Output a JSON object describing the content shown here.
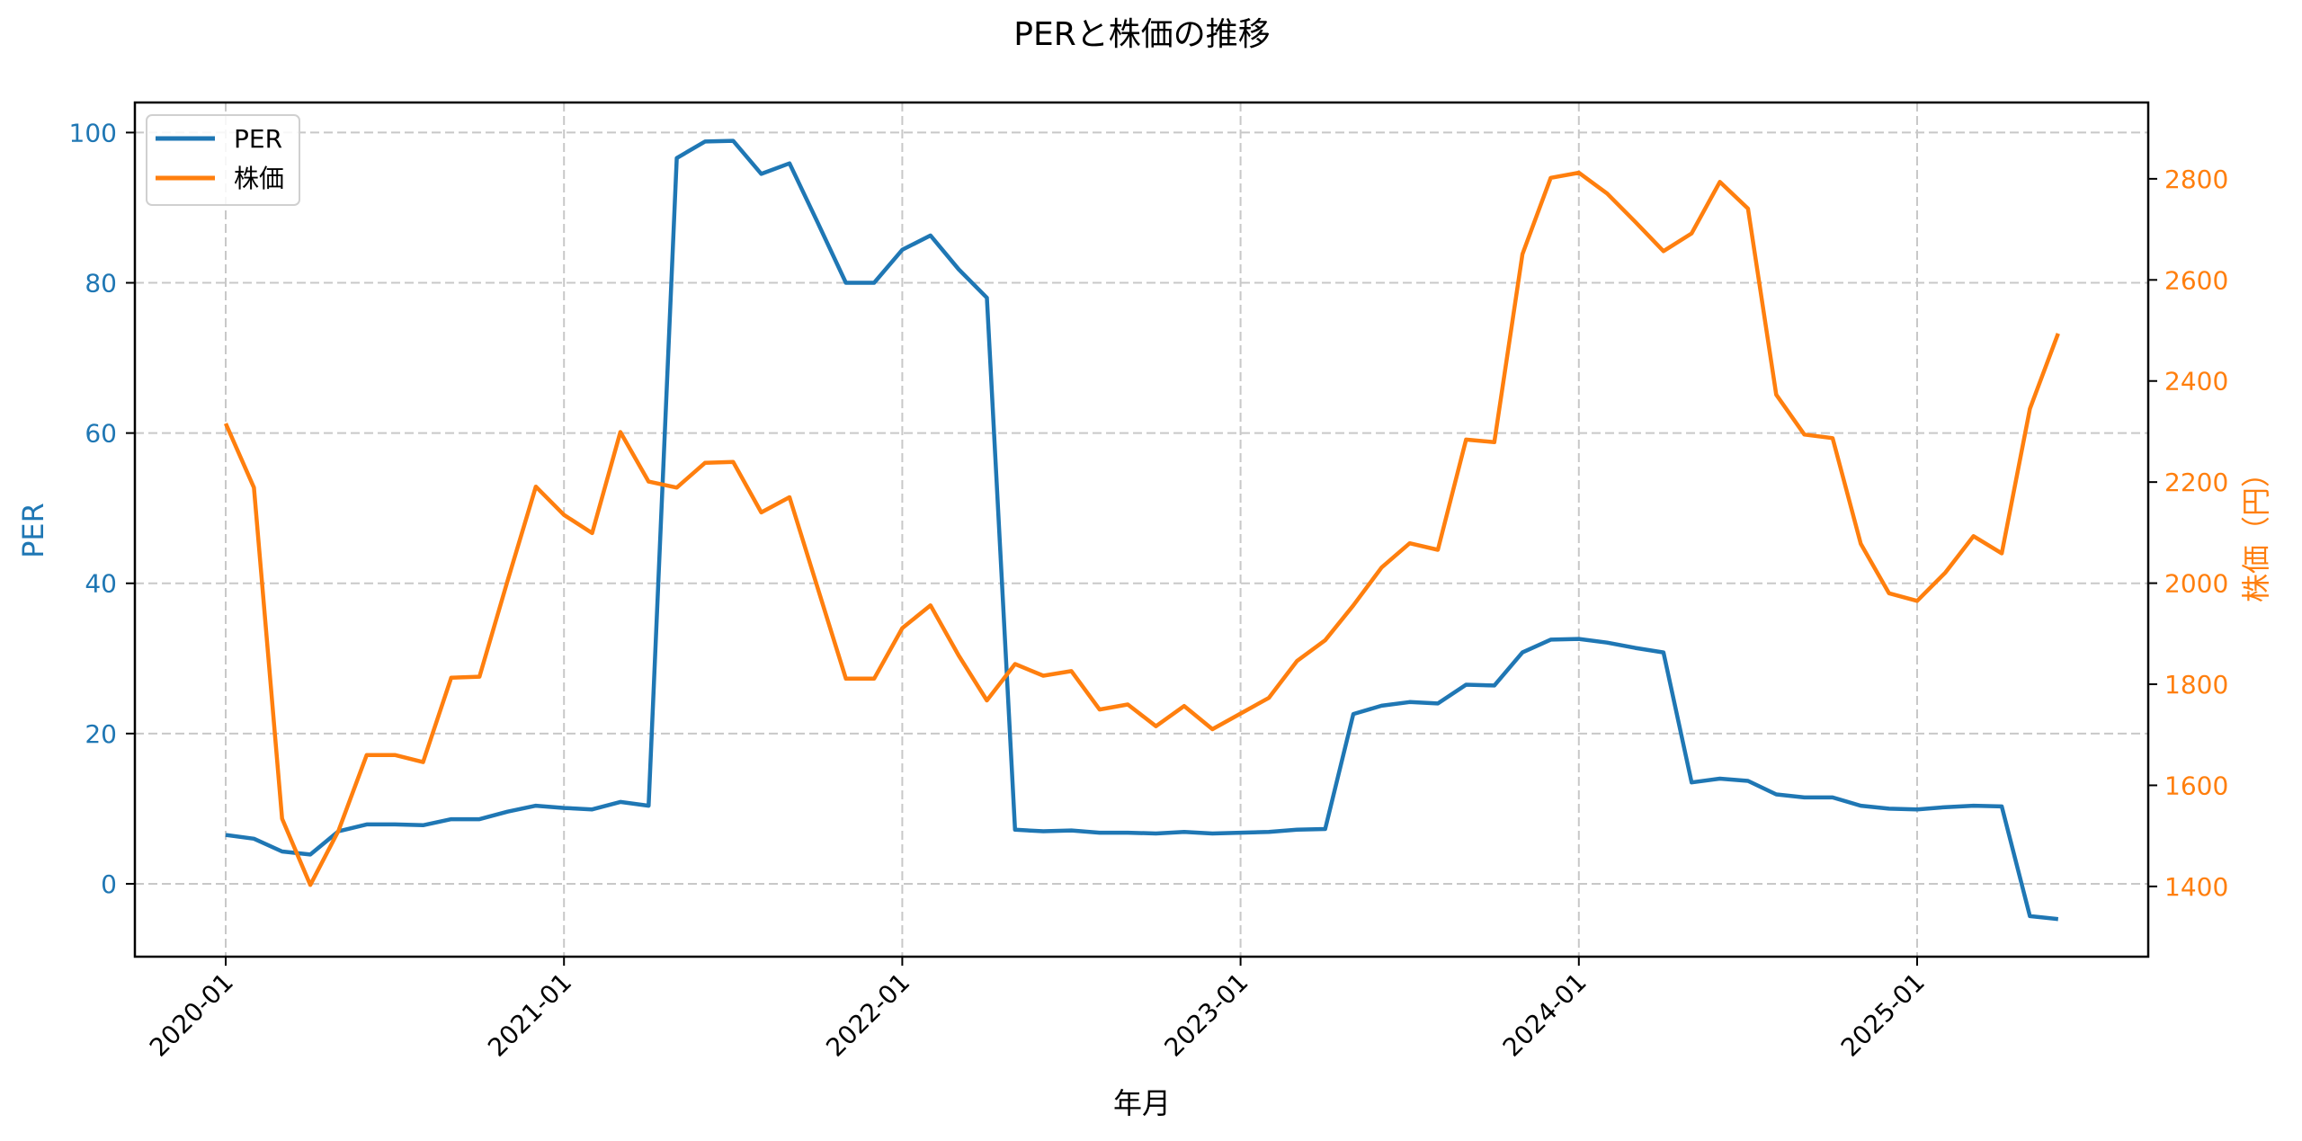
{
  "chart_data": {
    "type": "line",
    "title": "PERと株価の推移",
    "xlabel": "年月",
    "ylabel": "PER",
    "ylabel_right": "株価（円）",
    "x_tick_labels": [
      "2020-01",
      "2021-01",
      "2022-01",
      "2023-01",
      "2024-01",
      "2025-01"
    ],
    "x_tick_months": [
      0,
      12,
      24,
      36,
      48,
      60
    ],
    "x": [
      "2020-01",
      "2020-02",
      "2020-03",
      "2020-04",
      "2020-05",
      "2020-06",
      "2020-07",
      "2020-08",
      "2020-09",
      "2020-10",
      "2020-11",
      "2020-12",
      "2021-01",
      "2021-02",
      "2021-03",
      "2021-04",
      "2021-05",
      "2021-06",
      "2021-07",
      "2021-08",
      "2021-09",
      "2021-10",
      "2021-11",
      "2021-12",
      "2022-01",
      "2022-02",
      "2022-03",
      "2022-04",
      "2022-05",
      "2022-06",
      "2022-07",
      "2022-08",
      "2022-09",
      "2022-10",
      "2022-11",
      "2022-12",
      "2023-01",
      "2023-02",
      "2023-03",
      "2023-04",
      "2023-05",
      "2023-06",
      "2023-07",
      "2023-08",
      "2023-09",
      "2023-10",
      "2023-11",
      "2023-12",
      "2024-01",
      "2024-02",
      "2024-03",
      "2024-04",
      "2024-05",
      "2024-06",
      "2024-07",
      "2024-08",
      "2024-09",
      "2024-10",
      "2024-11",
      "2024-12",
      "2025-01",
      "2025-02",
      "2025-03",
      "2025-04",
      "2025-05",
      "2025-06"
    ],
    "series": [
      {
        "name": "PER",
        "axis": "left",
        "color": "#1f77b4",
        "values": [
          6.5,
          6.0,
          4.3,
          3.9,
          7.0,
          7.9,
          7.9,
          7.8,
          8.6,
          8.6,
          9.6,
          10.4,
          10.1,
          9.9,
          10.9,
          10.4,
          96.6,
          98.8,
          98.9,
          94.5,
          95.9,
          88.0,
          80.0,
          80.0,
          84.4,
          86.3,
          81.8,
          78.0,
          7.2,
          7.0,
          7.1,
          6.8,
          6.8,
          6.7,
          6.9,
          6.7,
          6.8,
          6.9,
          7.2,
          7.3,
          22.6,
          23.7,
          24.2,
          24.0,
          26.5,
          26.4,
          30.8,
          32.5,
          32.6,
          32.1,
          31.4,
          30.8,
          13.5,
          14.0,
          13.7,
          11.9,
          11.5,
          11.5,
          10.4,
          10.0,
          9.9,
          10.2,
          10.4,
          10.3,
          -4.3,
          -4.7
        ]
      },
      {
        "name": "株価",
        "axis": "right",
        "color": "#ff7f0e",
        "values": [
          2316,
          2189,
          1534,
          1403,
          1510,
          1660,
          1660,
          1646,
          1813,
          1815,
          2005,
          2191,
          2135,
          2099,
          2299,
          2201,
          2189,
          2238,
          2240,
          2140,
          2170,
          1990,
          1811,
          1811,
          1911,
          1956,
          1857,
          1768,
          1840,
          1817,
          1826,
          1750,
          1760,
          1717,
          1757,
          1711,
          1742,
          1773,
          1846,
          1887,
          1956,
          2031,
          2079,
          2066,
          2284,
          2279,
          2651,
          2802,
          2812,
          2771,
          2715,
          2657,
          2692,
          2794,
          2741,
          2373,
          2294,
          2287,
          2078,
          1980,
          1965,
          2021,
          2093,
          2059,
          2345,
          2494
        ]
      }
    ],
    "ylim": [
      -9.7,
      104.0
    ],
    "yticks": [
      0,
      20,
      40,
      60,
      80,
      100
    ],
    "ylim_right": [
      1261,
      2951
    ],
    "yticks_right": [
      1400,
      1600,
      1800,
      2000,
      2200,
      2400,
      2600,
      2800
    ],
    "grid": true,
    "grid_style": "dashed",
    "legend_position": "upper left"
  },
  "legend": {
    "items": [
      {
        "label": "PER",
        "color": "#1f77b4"
      },
      {
        "label": "株価",
        "color": "#ff7f0e"
      }
    ]
  },
  "colors": {
    "left_axis": "#1f77b4",
    "right_axis": "#ff7f0e",
    "grid": "#c8c8c8",
    "axes": "#000000"
  }
}
